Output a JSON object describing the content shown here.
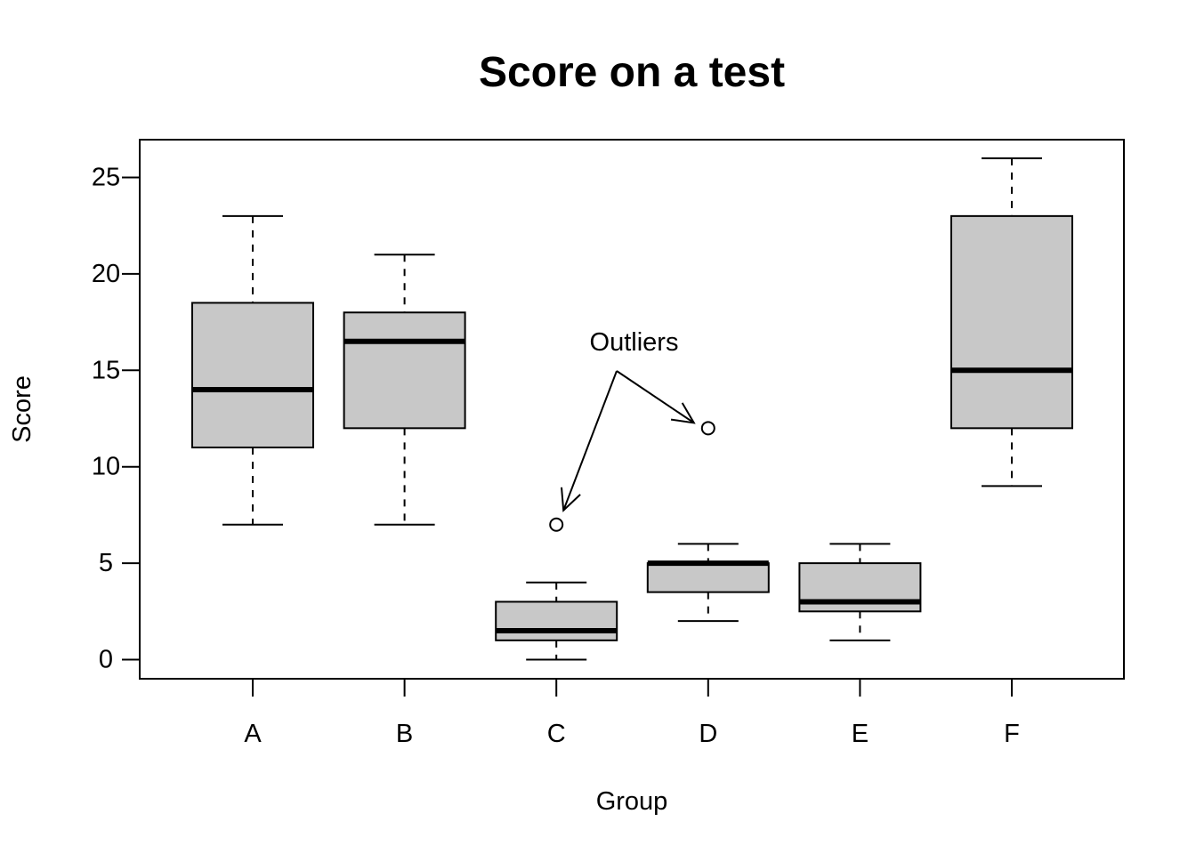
{
  "chart_data": {
    "type": "box",
    "title": "Score on a test",
    "xlabel": "Group",
    "ylabel": "Score",
    "ylim": [
      -1,
      26
    ],
    "y_ticks": [
      0,
      5,
      10,
      15,
      20,
      25
    ],
    "categories": [
      "A",
      "B",
      "C",
      "D",
      "E",
      "F"
    ],
    "box_color": "#c8c8c8",
    "boxes": [
      {
        "group": "A",
        "whisker_low": 7,
        "q1": 11,
        "median": 14,
        "q3": 18.5,
        "whisker_high": 23,
        "outliers": []
      },
      {
        "group": "B",
        "whisker_low": 7,
        "q1": 12,
        "median": 16.5,
        "q3": 18,
        "whisker_high": 21,
        "outliers": []
      },
      {
        "group": "C",
        "whisker_low": 0,
        "q1": 1,
        "median": 1.5,
        "q3": 3,
        "whisker_high": 4,
        "outliers": [
          7
        ]
      },
      {
        "group": "D",
        "whisker_low": 2,
        "q1": 3.5,
        "median": 5,
        "q3": 5,
        "whisker_high": 6,
        "outliers": [
          12
        ]
      },
      {
        "group": "E",
        "whisker_low": 1,
        "q1": 2.5,
        "median": 3,
        "q3": 5,
        "whisker_high": 6,
        "outliers": []
      },
      {
        "group": "F",
        "whisker_low": 9,
        "q1": 12,
        "median": 15,
        "q3": 23,
        "whisker_high": 26,
        "outliers": []
      }
    ],
    "annotation": {
      "text": "Outliers",
      "x": 3.5,
      "y": 16.5,
      "arrows": [
        {
          "group": "C",
          "y": 7
        },
        {
          "group": "D",
          "y": 12
        }
      ]
    },
    "grid": false,
    "legend": "none"
  }
}
